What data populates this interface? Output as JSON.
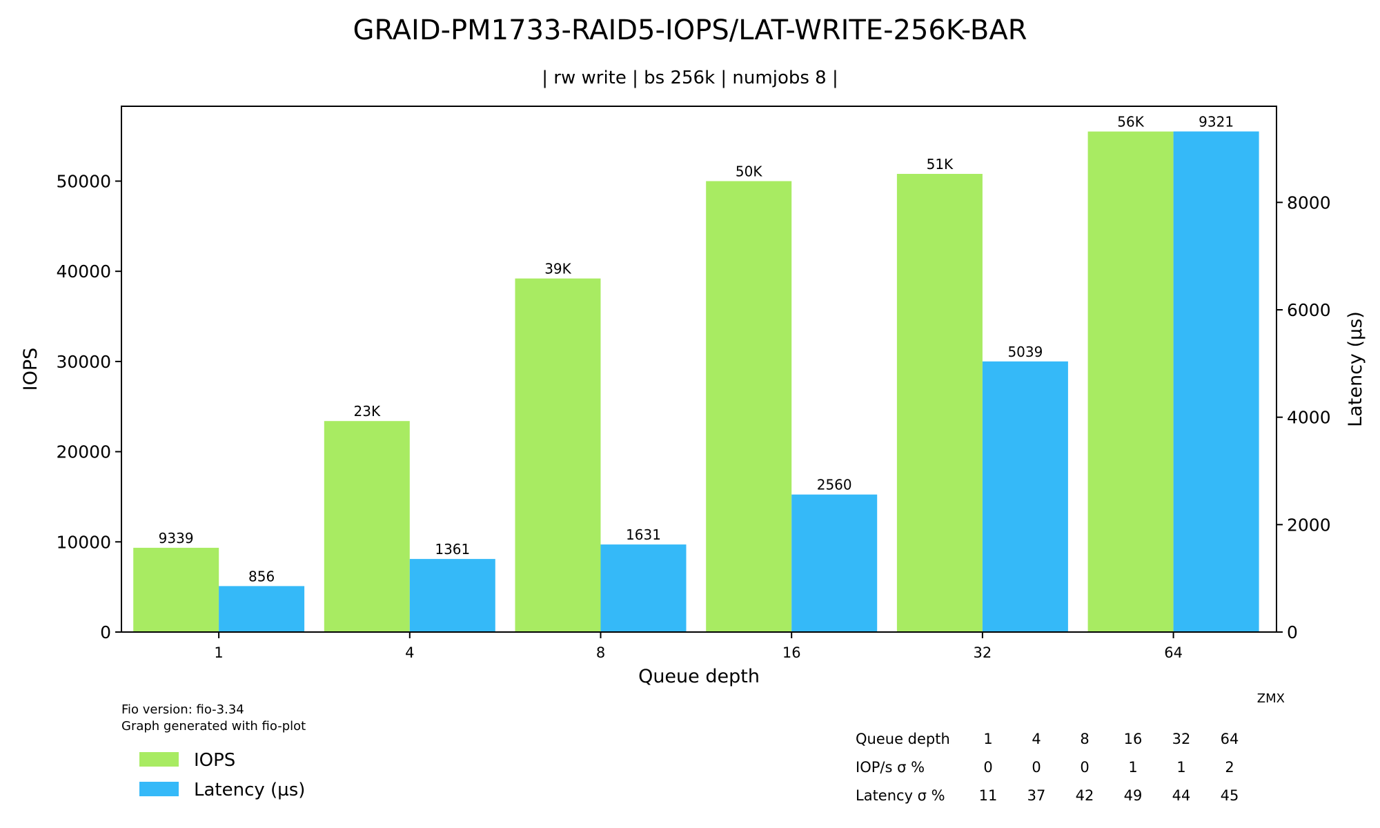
{
  "chart_data": {
    "type": "bar",
    "title": "GRAID-PM1733-RAID5-IOPS/LAT-WRITE-256K-BAR",
    "subtitle": "| rw write | bs 256k | numjobs 8 |",
    "xlabel": "Queue depth",
    "ylabel": "IOPS",
    "y2label": "Latency (µs)",
    "categories": [
      "1",
      "4",
      "8",
      "16",
      "32",
      "64"
    ],
    "ylim": [
      0,
      58300
    ],
    "y2lim": [
      0,
      9790
    ],
    "yticks": [
      0,
      10000,
      20000,
      30000,
      40000,
      50000
    ],
    "y2ticks": [
      0,
      2000,
      4000,
      6000,
      8000
    ],
    "grid": false,
    "legend_position": "bottom-left",
    "series": [
      {
        "name": "IOPS",
        "axis": "left",
        "color": "#a8eb62",
        "values": [
          9339,
          23400,
          39200,
          50000,
          50800,
          55500
        ],
        "labels": [
          "9339",
          "23K",
          "39K",
          "50K",
          "51K",
          "56K"
        ]
      },
      {
        "name": "Latency (µs)",
        "axis": "right",
        "color": "#35b9f8",
        "values": [
          856,
          1361,
          1631,
          2560,
          5039,
          9321
        ],
        "labels": [
          "856",
          "1361",
          "1631",
          "2560",
          "5039",
          "9321"
        ]
      }
    ]
  },
  "footer": {
    "fio_version": "Fio version: fio-3.34",
    "generated_with": "Graph generated with fio-plot",
    "watermark": "ZMX"
  },
  "stats_table": {
    "rows": [
      {
        "label": "Queue depth",
        "values": [
          "1",
          "4",
          "8",
          "16",
          "32",
          "64"
        ]
      },
      {
        "label": "IOP/s σ %",
        "values": [
          "0",
          "0",
          "0",
          "1",
          "1",
          "2"
        ]
      },
      {
        "label": "Latency σ %",
        "values": [
          "11",
          "37",
          "42",
          "49",
          "44",
          "45"
        ]
      }
    ]
  }
}
